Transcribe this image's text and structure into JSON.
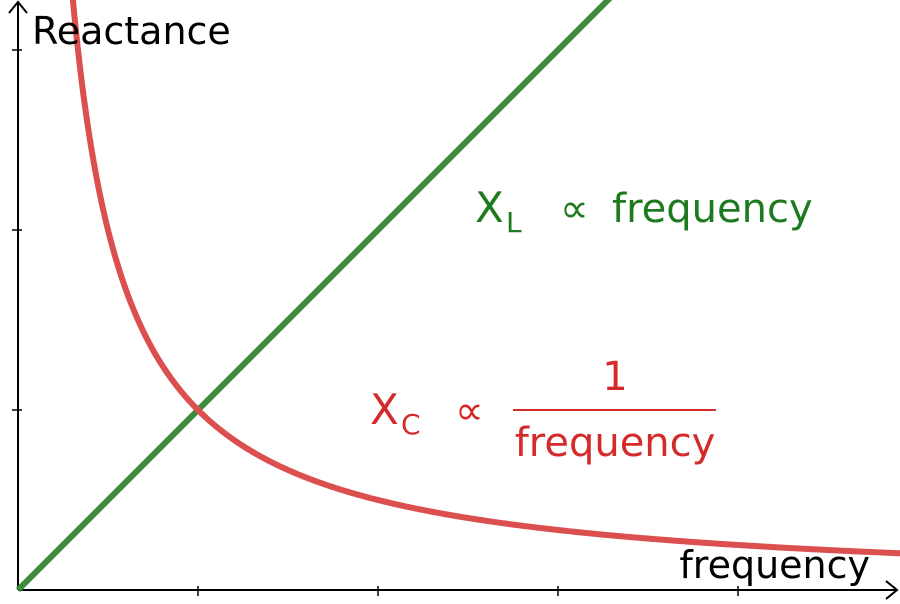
{
  "chart_data": {
    "type": "line",
    "xlabel": "frequency",
    "ylabel": "Reactance",
    "grid": false,
    "series": [
      {
        "name": "X_L",
        "color": "#3d8b3d",
        "relation": "proportional",
        "x": [
          0,
          1,
          2,
          3,
          3.4
        ],
        "y": [
          0,
          1,
          2,
          3,
          3.4
        ]
      },
      {
        "name": "X_C",
        "color": "#dc4f4f",
        "relation": "inverse",
        "x": [
          0.3,
          0.5,
          1,
          2,
          3,
          4,
          5
        ],
        "y": [
          3.333,
          2,
          1,
          0.5,
          0.333,
          0.25,
          0.2
        ]
      }
    ],
    "annotations": {
      "xl": {
        "symbol": "X",
        "subscript": "L",
        "relation": "∝",
        "text": "frequency"
      },
      "xc": {
        "symbol": "X",
        "subscript": "C",
        "relation": "∝",
        "numerator": "1",
        "denominator": "frequency"
      }
    },
    "xlim": [
      0,
      5
    ],
    "ylim": [
      0,
      3.33
    ]
  }
}
